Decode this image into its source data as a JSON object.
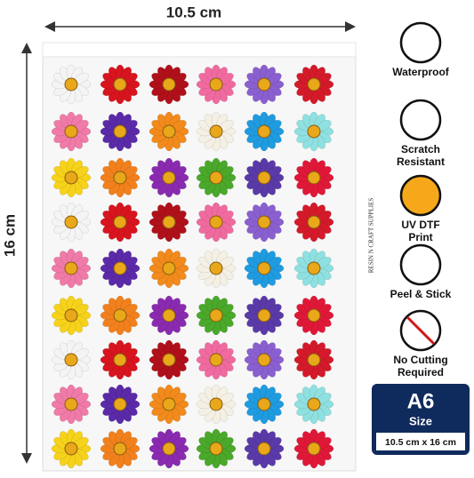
{
  "dimensions": {
    "width": "10.5 cm",
    "height": "16 cm"
  },
  "brand": "RESIN N CRAFT SUPPLIES",
  "features": [
    {
      "lines": [
        "Waterproof"
      ]
    },
    {
      "lines": [
        "Scratch",
        "Resistant"
      ]
    },
    {
      "lines": [
        "UV DTF",
        "Print"
      ]
    },
    {
      "lines": [
        "Peel & Stick"
      ]
    },
    {
      "lines": [
        "No Cutting",
        "Required"
      ]
    }
  ],
  "badge": {
    "size": "A6",
    "label": "Size",
    "dimensions": "10.5 cm x 16 cm"
  }
}
